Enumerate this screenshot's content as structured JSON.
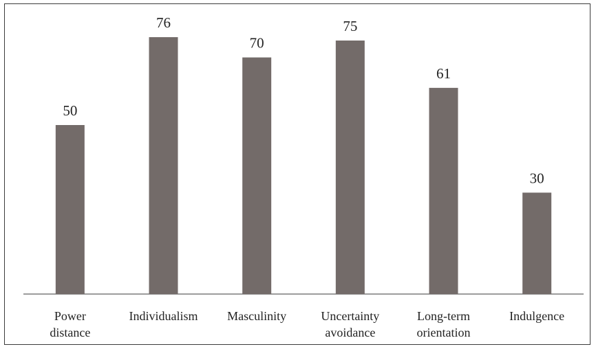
{
  "chart_data": {
    "type": "bar",
    "categories": [
      [
        "Power",
        "distance"
      ],
      [
        "Individualism"
      ],
      [
        "Masculinity"
      ],
      [
        "Uncertainty",
        "avoidance"
      ],
      [
        "Long-term",
        "orientation"
      ],
      [
        "Indulgence"
      ]
    ],
    "values": [
      50,
      76,
      70,
      75,
      61,
      30
    ],
    "data_labels": [
      "50",
      "76",
      "70",
      "75",
      "61",
      "30"
    ],
    "ylim": [
      0,
      100
    ],
    "grid": false,
    "legend": "none",
    "colors": {
      "bar": "#736b69",
      "axis": "#3a3a3a",
      "text": "#222222"
    }
  }
}
